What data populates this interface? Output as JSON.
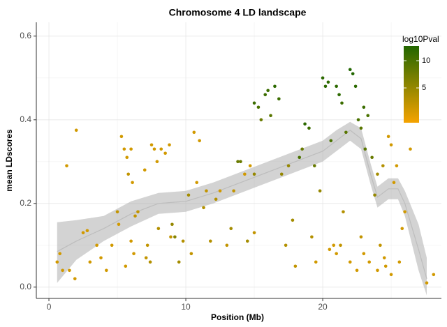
{
  "chart_data": {
    "type": "scatter",
    "title": "Chromosome 4 LD landscape",
    "x_label": "Position (Mb)",
    "y_label": "mean LDscores",
    "xlim": [
      -0.92,
      28.67
    ],
    "ylim": [
      -0.027,
      0.633
    ],
    "xticks": [
      0,
      10,
      20
    ],
    "yticks": [
      {
        "value": 0,
        "label": "0.0"
      },
      0.2,
      0.4,
      0.6
    ],
    "grid": true,
    "minor_grid": true,
    "legend": {
      "title": "log10Pval",
      "position": "top-right",
      "ticks": [
        5,
        10
      ],
      "colorlim": [
        -1.4,
        12.7
      ],
      "colors": [
        "#f5a300",
        "#226600"
      ]
    },
    "series": [
      {
        "x": [
          0.6,
          0.8,
          1.0,
          1.3,
          1.5,
          1.9,
          2.0,
          2.5,
          2.8,
          3.0,
          3.5,
          3.8,
          4.2,
          4.6,
          5.0,
          5.1,
          5.3,
          5.5,
          5.7,
          5.8,
          6.0,
          6.1,
          6.2,
          6.0,
          5.6,
          6.3,
          6.5,
          7.0,
          7.1,
          7.2,
          7.4,
          7.5,
          7.7,
          7.9,
          8.0,
          8.2,
          8.5,
          8.8,
          8.9,
          9.0,
          9.2,
          9.5,
          9.8,
          10.2,
          10.4,
          10.6,
          10.8,
          11.0,
          11.3,
          11.5,
          11.8,
          12.2,
          12.5,
          13.0,
          13.3,
          13.5,
          13.8,
          14.0,
          14.3,
          14.5,
          14.7,
          15.0,
          15.0,
          15.0,
          15.3,
          15.5,
          15.8,
          16.0,
          16.2,
          16.5,
          16.8,
          17.0,
          17.3,
          17.5,
          17.8,
          18.0,
          18.3,
          18.5,
          18.7,
          19.0,
          19.2,
          19.4,
          19.5,
          19.8,
          20.0,
          20.2,
          20.4,
          20.6,
          20.8,
          21.0,
          21.2,
          21.4,
          21.5,
          21.7,
          22.0,
          22.2,
          22.4,
          22.6,
          22.8,
          23.0,
          23.1,
          23.3,
          23.4,
          23.6,
          23.8,
          24.0,
          24.2,
          24.4,
          24.6,
          24.8,
          25.0,
          25.2,
          25.4,
          25.6,
          25.8,
          26.0,
          26.4,
          27.6,
          28.1,
          20.5,
          21.0,
          22.0,
          22.5,
          23.0,
          24.0,
          24.5,
          25.0,
          21.3,
          22.8
        ],
        "values": [
          0.06,
          0.08,
          0.04,
          0.29,
          0.04,
          0.02,
          0.375,
          0.13,
          0.135,
          0.06,
          0.1,
          0.07,
          0.04,
          0.1,
          0.18,
          0.15,
          0.36,
          0.33,
          0.31,
          0.27,
          0.33,
          0.25,
          0.08,
          0.11,
          0.05,
          0.17,
          0.18,
          0.28,
          0.07,
          0.1,
          0.06,
          0.34,
          0.33,
          0.3,
          0.14,
          0.33,
          0.32,
          0.34,
          0.12,
          0.15,
          0.12,
          0.06,
          0.11,
          0.22,
          0.08,
          0.37,
          0.25,
          0.35,
          0.19,
          0.23,
          0.11,
          0.21,
          0.23,
          0.1,
          0.14,
          0.23,
          0.3,
          0.3,
          0.27,
          0.11,
          0.29,
          0.13,
          0.27,
          0.44,
          0.43,
          0.4,
          0.46,
          0.47,
          0.41,
          0.48,
          0.45,
          0.27,
          0.1,
          0.29,
          0.16,
          0.05,
          0.31,
          0.33,
          0.39,
          0.38,
          0.12,
          0.29,
          0.06,
          0.23,
          0.5,
          0.48,
          0.49,
          0.35,
          0.1,
          0.48,
          0.46,
          0.44,
          0.18,
          0.37,
          0.52,
          0.51,
          0.48,
          0.4,
          0.38,
          0.43,
          0.33,
          0.41,
          0.06,
          0.31,
          0.22,
          0.27,
          0.1,
          0.29,
          0.05,
          0.36,
          0.34,
          0.25,
          0.29,
          0.06,
          0.14,
          0.18,
          0.33,
          0.01,
          0.03,
          0.09,
          0.08,
          0.06,
          0.04,
          0.08,
          0.04,
          0.07,
          0.03,
          0.1,
          0.12
        ],
        "log10Pval": [
          1,
          1,
          1,
          1,
          1,
          1,
          1,
          1,
          1,
          1,
          1,
          1,
          1,
          1,
          2,
          1,
          1,
          1,
          1,
          2,
          1,
          1,
          1,
          1,
          1,
          2,
          2,
          1,
          2,
          2,
          3,
          1,
          1,
          1,
          3,
          1,
          1,
          1,
          2,
          5,
          6,
          4,
          3,
          4,
          2,
          1,
          1,
          1,
          3,
          2,
          3,
          3,
          1,
          2,
          4,
          2,
          8,
          8,
          1,
          4,
          1,
          2,
          5,
          11,
          10,
          8,
          11,
          11,
          9,
          12,
          11,
          5,
          3,
          5,
          4,
          2,
          10,
          8,
          12,
          11,
          3,
          8,
          1,
          5,
          12,
          12,
          12,
          10,
          1,
          12,
          12,
          11,
          3,
          9,
          13,
          13,
          12,
          10,
          9,
          11,
          9,
          10,
          1,
          8,
          5,
          4,
          2,
          3,
          1,
          1,
          1,
          1,
          1,
          1,
          1,
          1,
          1,
          1,
          1,
          1,
          1,
          1,
          1,
          1,
          1,
          1,
          1,
          2,
          2
        ]
      }
    ],
    "smooth": {
      "x": [
        0.6,
        2,
        4,
        6,
        8,
        10,
        12,
        14,
        16,
        18,
        20,
        21,
        22,
        22.8,
        23.5,
        24,
        24.8,
        25.5,
        26,
        27,
        27.6
      ],
      "values": [
        0.085,
        0.11,
        0.14,
        0.175,
        0.2,
        0.205,
        0.225,
        0.25,
        0.275,
        0.3,
        0.325,
        0.35,
        0.375,
        0.355,
        0.27,
        0.215,
        0.235,
        0.235,
        0.2,
        0.09,
        0.02
      ],
      "lower": [
        0.01,
        0.065,
        0.11,
        0.145,
        0.175,
        0.18,
        0.2,
        0.225,
        0.25,
        0.275,
        0.3,
        0.325,
        0.35,
        0.33,
        0.245,
        0.19,
        0.21,
        0.21,
        0.17,
        0.04,
        -0.02
      ],
      "upper": [
        0.155,
        0.16,
        0.17,
        0.205,
        0.225,
        0.23,
        0.25,
        0.275,
        0.3,
        0.325,
        0.35,
        0.375,
        0.395,
        0.38,
        0.295,
        0.24,
        0.26,
        0.26,
        0.23,
        0.15,
        0.07
      ]
    }
  }
}
